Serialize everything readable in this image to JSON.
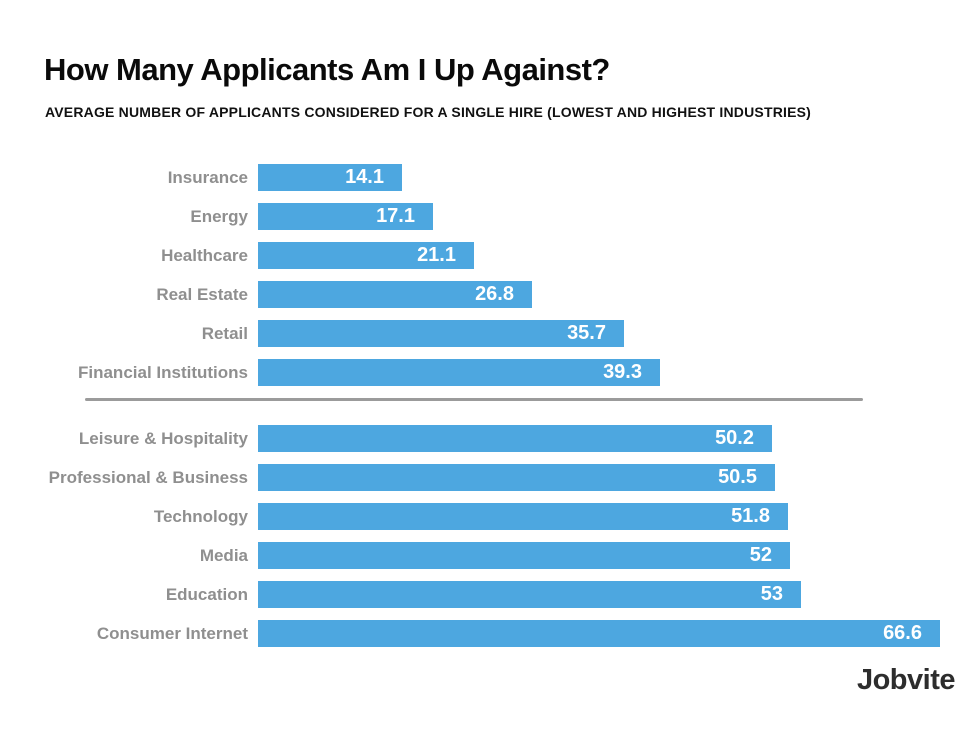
{
  "header": {
    "title": "How Many Applicants Am I Up Against?",
    "subtitle": "AVERAGE NUMBER OF APPLICANTS CONSIDERED FOR A SINGLE HIRE (LOWEST AND HIGHEST INDUSTRIES)"
  },
  "chart_data": {
    "type": "bar",
    "orientation": "horizontal",
    "title": "How Many Applicants Am I Up Against?",
    "subtitle": "AVERAGE NUMBER OF APPLICANTS CONSIDERED FOR A SINGLE HIRE (LOWEST AND HIGHEST INDUSTRIES)",
    "xlim": [
      0,
      66.6
    ],
    "grid": false,
    "legend": false,
    "value_labels_inside_bars": true,
    "groups": [
      {
        "name": "lowest-industries",
        "categories": [
          "Insurance",
          "Energy",
          "Healthcare",
          "Real Estate",
          "Retail",
          "Financial Institutions"
        ],
        "values": [
          14.1,
          17.1,
          21.1,
          26.8,
          35.7,
          39.3
        ]
      },
      {
        "name": "highest-industries",
        "categories": [
          "Leisure & Hospitality",
          "Professional & Business",
          "Technology",
          "Media",
          "Education",
          "Consumer Internet"
        ],
        "values": [
          50.2,
          50.5,
          51.8,
          52,
          53,
          66.6
        ]
      }
    ]
  },
  "colors": {
    "background": "#ffffff",
    "bar": "#4da7e0",
    "category_label": "#8f8f8f",
    "value_text": "#ffffff",
    "title": "#0a0a0a",
    "subtitle": "#111111",
    "divider": "#9b9b9b",
    "brand": "#2d2d2d"
  },
  "footer": {
    "brand": "Jobvite"
  }
}
